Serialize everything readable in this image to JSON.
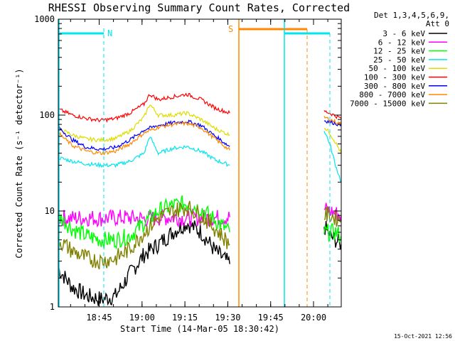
{
  "chart_data": {
    "type": "line",
    "title": "RHESSI Observing Summary Count Rates, Corrected",
    "xlabel": "Start Time (14-Mar-05 18:30:42)",
    "ylabel": "Corrected Count Rate (s⁻¹ detector⁻¹)",
    "yscale": "log",
    "ylim": [
      1,
      1000
    ],
    "xlim_minutes": [
      0,
      99
    ],
    "x_ticks": [
      {
        "label": "18:45",
        "minute": 14.3
      },
      {
        "label": "19:00",
        "minute": 29.3
      },
      {
        "label": "19:15",
        "minute": 44.3
      },
      {
        "label": "19:30",
        "minute": 59.3
      },
      {
        "label": "19:45",
        "minute": 74.3
      },
      {
        "label": "20:00",
        "minute": 89.3
      }
    ],
    "y_ticks": [
      {
        "label": "1",
        "value": 1
      },
      {
        "label": "10",
        "value": 10
      },
      {
        "label": "100",
        "value": 100
      },
      {
        "label": "1000",
        "value": 1000
      }
    ],
    "legend": {
      "header_1": "Det 1,3,4,5,6,9,",
      "header_2": "Att 0",
      "placement": "right"
    },
    "series": [
      {
        "name": "3 - 6 keV",
        "color": "#000000",
        "x": [
          0,
          5,
          10,
          15,
          20,
          25,
          30,
          35,
          40,
          45,
          50,
          55,
          60,
          93,
          95,
          97,
          99
        ],
        "y": [
          2.5,
          1.6,
          1.3,
          1.2,
          1.3,
          2.2,
          3.5,
          4.5,
          6,
          7.5,
          6,
          3.8,
          2.8,
          7,
          5.5,
          5,
          4.5
        ]
      },
      {
        "name": "6 - 12 keV",
        "color": "#ff00ff",
        "x": [
          0,
          5,
          10,
          15,
          20,
          25,
          30,
          35,
          40,
          45,
          50,
          55,
          60,
          93,
          95,
          97,
          99
        ],
        "y": [
          8.5,
          8.4,
          8.5,
          8.4,
          8.5,
          8.5,
          8.3,
          8.5,
          8.6,
          8.4,
          8.5,
          8.5,
          8.6,
          10.5,
          10,
          9.5,
          9
        ]
      },
      {
        "name": "12 - 25 keV",
        "color": "#00ff00",
        "x": [
          0,
          5,
          10,
          15,
          20,
          25,
          30,
          35,
          40,
          45,
          50,
          55,
          60,
          93,
          95,
          97,
          99
        ],
        "y": [
          9,
          6.5,
          5.5,
          5,
          5,
          5.5,
          7.5,
          10,
          11.5,
          12,
          10.5,
          8,
          6,
          6,
          6,
          6,
          5.5
        ]
      },
      {
        "name": "25 - 50 keV",
        "color": "#00e5ee",
        "x": [
          0,
          5,
          10,
          15,
          20,
          25,
          30,
          32,
          35,
          40,
          45,
          50,
          55,
          60,
          93,
          95,
          97,
          99
        ],
        "y": [
          36,
          33,
          31,
          30,
          30,
          33,
          40,
          60,
          40,
          45,
          47,
          42,
          34,
          30,
          70,
          50,
          30,
          20
        ]
      },
      {
        "name": "50 - 100 keV",
        "color": "#dddd00",
        "x": [
          0,
          5,
          10,
          15,
          20,
          25,
          30,
          32,
          35,
          40,
          45,
          50,
          55,
          60,
          93,
          95,
          97,
          99
        ],
        "y": [
          72,
          62,
          56,
          55,
          57,
          68,
          95,
          130,
          100,
          100,
          105,
          90,
          72,
          62,
          75,
          65,
          52,
          40
        ]
      },
      {
        "name": "100 - 300 keV",
        "color": "#ff0000",
        "x": [
          0,
          5,
          10,
          15,
          20,
          25,
          30,
          32,
          35,
          40,
          45,
          50,
          55,
          60,
          93,
          95,
          97,
          99
        ],
        "y": [
          115,
          100,
          92,
          88,
          92,
          105,
          130,
          165,
          145,
          155,
          165,
          145,
          118,
          105,
          110,
          105,
          98,
          92
        ]
      },
      {
        "name": "300 - 800 keV",
        "color": "#0000ff",
        "x": [
          0,
          5,
          10,
          15,
          20,
          25,
          30,
          35,
          40,
          45,
          50,
          55,
          60,
          93,
          95,
          97,
          99
        ],
        "y": [
          75,
          55,
          46,
          44,
          46,
          55,
          70,
          78,
          83,
          86,
          78,
          60,
          47,
          88,
          85,
          82,
          78
        ]
      },
      {
        "name": "800 - 7000 keV",
        "color": "#ff8800",
        "x": [
          0,
          5,
          10,
          15,
          20,
          25,
          30,
          35,
          40,
          45,
          50,
          55,
          60,
          93,
          95,
          97,
          99
        ],
        "y": [
          65,
          48,
          42,
          40,
          42,
          50,
          65,
          75,
          80,
          82,
          74,
          56,
          43,
          95,
          90,
          85,
          80
        ]
      },
      {
        "name": "7000 - 15000 keV",
        "color": "#808000",
        "x": [
          0,
          5,
          10,
          15,
          20,
          25,
          30,
          35,
          40,
          45,
          50,
          55,
          60,
          93,
          95,
          97,
          99
        ],
        "y": [
          5,
          3.8,
          3.2,
          3,
          3.2,
          4,
          6,
          8.5,
          10,
          11,
          9,
          6.5,
          4.5,
          9,
          9,
          8.5,
          8
        ]
      }
    ],
    "annotations": [
      {
        "label": "N",
        "color": "#00e5ee"
      },
      {
        "label": "S",
        "color": "#ff8800"
      }
    ],
    "footer_date": "15-Oct-2021 12:56"
  }
}
